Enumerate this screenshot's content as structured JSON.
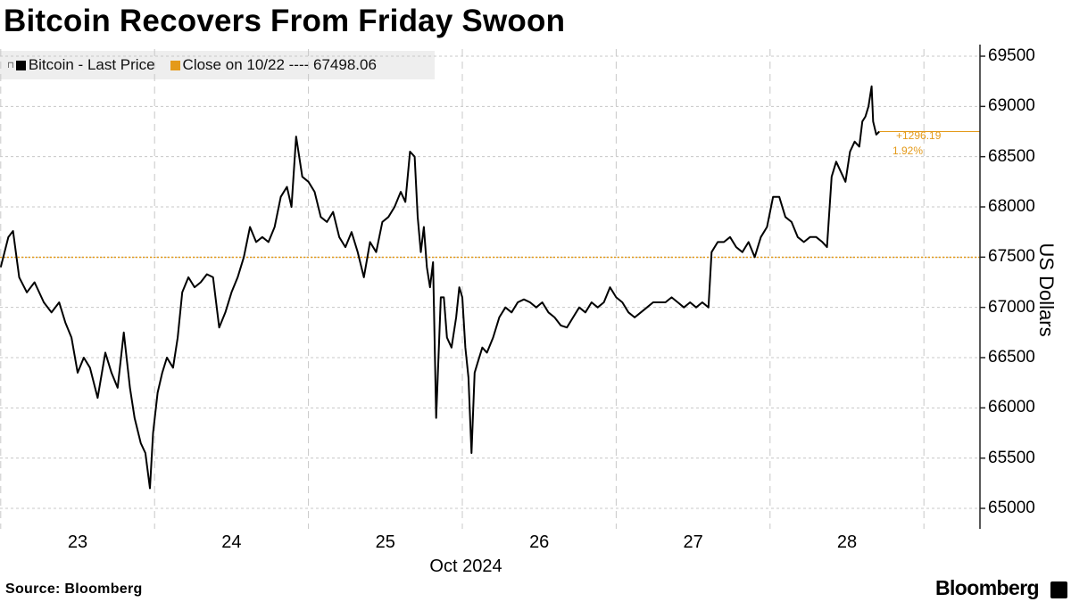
{
  "title": "Bitcoin Recovers From Friday Swoon",
  "legend": {
    "series_label": "Bitcoin - Last Price",
    "close_label": "Close on 10/22 ---- 67498.06"
  },
  "footer": {
    "source": "Source: Bloomberg",
    "brand": "Bloomberg"
  },
  "colors": {
    "series": "#000000",
    "close": "#e49a1a",
    "grid": "#c8c8c8",
    "axis": "#222222"
  },
  "chart_data": {
    "type": "line",
    "ylabel": "US Dollars",
    "xlabel": "Oct 2024",
    "ylim": [
      64850,
      69700
    ],
    "yticks": [
      65000,
      65500,
      66000,
      66500,
      67000,
      67500,
      68000,
      68500,
      69000,
      69500
    ],
    "ytick_labels": [
      "65000",
      "65500",
      "66000",
      "66500",
      "67000",
      "67500",
      "68000",
      "68500",
      "69000",
      "69500"
    ],
    "xlim": [
      22.5,
      28.8
    ],
    "xticks": [
      23,
      24,
      25,
      26,
      27,
      28
    ],
    "xtick_labels": [
      "23",
      "24",
      "25",
      "26",
      "27",
      "28"
    ],
    "grid": true,
    "legend_position": "top-left",
    "close_reference": {
      "label": "Close on 10/22",
      "value": 67498.06
    },
    "annotation": {
      "change": "+1296.19",
      "percent": "1.92%"
    },
    "series": [
      {
        "name": "Bitcoin - Last Price",
        "points": [
          [
            22.5,
            67400
          ],
          [
            22.55,
            67700
          ],
          [
            22.58,
            67760
          ],
          [
            22.62,
            67300
          ],
          [
            22.67,
            67150
          ],
          [
            22.72,
            67250
          ],
          [
            22.78,
            67050
          ],
          [
            22.83,
            66950
          ],
          [
            22.88,
            67050
          ],
          [
            22.92,
            66850
          ],
          [
            22.96,
            66700
          ],
          [
            23.0,
            66350
          ],
          [
            23.04,
            66500
          ],
          [
            23.08,
            66400
          ],
          [
            23.13,
            66100
          ],
          [
            23.18,
            66550
          ],
          [
            23.22,
            66350
          ],
          [
            23.26,
            66200
          ],
          [
            23.3,
            66750
          ],
          [
            23.34,
            66200
          ],
          [
            23.37,
            65900
          ],
          [
            23.41,
            65650
          ],
          [
            23.44,
            65550
          ],
          [
            23.47,
            65200
          ],
          [
            23.49,
            65750
          ],
          [
            23.52,
            66150
          ],
          [
            23.55,
            66350
          ],
          [
            23.58,
            66500
          ],
          [
            23.62,
            66400
          ],
          [
            23.65,
            66700
          ],
          [
            23.68,
            67150
          ],
          [
            23.72,
            67300
          ],
          [
            23.76,
            67200
          ],
          [
            23.8,
            67250
          ],
          [
            23.84,
            67330
          ],
          [
            23.88,
            67300
          ],
          [
            23.92,
            66800
          ],
          [
            23.96,
            66950
          ],
          [
            24.0,
            67150
          ],
          [
            24.04,
            67300
          ],
          [
            24.08,
            67500
          ],
          [
            24.12,
            67800
          ],
          [
            24.16,
            67650
          ],
          [
            24.2,
            67700
          ],
          [
            24.24,
            67650
          ],
          [
            24.28,
            67800
          ],
          [
            24.32,
            68100
          ],
          [
            24.36,
            68200
          ],
          [
            24.39,
            68000
          ],
          [
            24.42,
            68700
          ],
          [
            24.46,
            68300
          ],
          [
            24.5,
            68250
          ],
          [
            24.54,
            68150
          ],
          [
            24.58,
            67900
          ],
          [
            24.62,
            67850
          ],
          [
            24.66,
            67950
          ],
          [
            24.7,
            67700
          ],
          [
            24.74,
            67600
          ],
          [
            24.78,
            67750
          ],
          [
            24.82,
            67550
          ],
          [
            24.86,
            67300
          ],
          [
            24.9,
            67650
          ],
          [
            24.94,
            67550
          ],
          [
            24.98,
            67850
          ],
          [
            25.02,
            67900
          ],
          [
            25.06,
            68000
          ],
          [
            25.1,
            68150
          ],
          [
            25.13,
            68050
          ],
          [
            25.16,
            68550
          ],
          [
            25.19,
            68500
          ],
          [
            25.21,
            67900
          ],
          [
            25.23,
            67550
          ],
          [
            25.25,
            67800
          ],
          [
            25.27,
            67400
          ],
          [
            25.29,
            67200
          ],
          [
            25.31,
            67450
          ],
          [
            25.33,
            65900
          ],
          [
            25.36,
            67100
          ],
          [
            25.38,
            67100
          ],
          [
            25.4,
            66700
          ],
          [
            25.43,
            66600
          ],
          [
            25.46,
            66900
          ],
          [
            25.48,
            67200
          ],
          [
            25.5,
            67100
          ],
          [
            25.52,
            66600
          ],
          [
            25.54,
            66300
          ],
          [
            25.56,
            65550
          ],
          [
            25.58,
            66350
          ],
          [
            25.6,
            66450
          ],
          [
            25.63,
            66600
          ],
          [
            25.66,
            66550
          ],
          [
            25.7,
            66700
          ],
          [
            25.74,
            66900
          ],
          [
            25.78,
            67000
          ],
          [
            25.82,
            66950
          ],
          [
            25.86,
            67050
          ],
          [
            25.9,
            67080
          ],
          [
            25.94,
            67050
          ],
          [
            25.98,
            67000
          ],
          [
            26.02,
            67050
          ],
          [
            26.06,
            66950
          ],
          [
            26.1,
            66900
          ],
          [
            26.14,
            66820
          ],
          [
            26.18,
            66800
          ],
          [
            26.22,
            66900
          ],
          [
            26.26,
            67000
          ],
          [
            26.3,
            66950
          ],
          [
            26.34,
            67050
          ],
          [
            26.38,
            67000
          ],
          [
            26.42,
            67050
          ],
          [
            26.46,
            67200
          ],
          [
            26.5,
            67100
          ],
          [
            26.54,
            67050
          ],
          [
            26.58,
            66950
          ],
          [
            26.62,
            66900
          ],
          [
            26.66,
            66950
          ],
          [
            26.7,
            67000
          ],
          [
            26.74,
            67050
          ],
          [
            26.78,
            67050
          ],
          [
            26.82,
            67050
          ],
          [
            26.86,
            67100
          ],
          [
            26.9,
            67050
          ],
          [
            26.94,
            67000
          ],
          [
            26.98,
            67050
          ],
          [
            27.02,
            67000
          ],
          [
            27.06,
            67050
          ],
          [
            27.1,
            67000
          ],
          [
            27.12,
            67550
          ],
          [
            27.16,
            67650
          ],
          [
            27.2,
            67650
          ],
          [
            27.24,
            67700
          ],
          [
            27.28,
            67600
          ],
          [
            27.32,
            67550
          ],
          [
            27.36,
            67650
          ],
          [
            27.4,
            67500
          ],
          [
            27.44,
            67700
          ],
          [
            27.48,
            67800
          ],
          [
            27.52,
            68100
          ],
          [
            27.56,
            68100
          ],
          [
            27.6,
            67900
          ],
          [
            27.64,
            67850
          ],
          [
            27.68,
            67700
          ],
          [
            27.72,
            67650
          ],
          [
            27.76,
            67700
          ],
          [
            27.8,
            67700
          ],
          [
            27.84,
            67650
          ],
          [
            27.87,
            67600
          ],
          [
            27.9,
            68300
          ],
          [
            27.93,
            68450
          ],
          [
            27.96,
            68350
          ],
          [
            27.99,
            68250
          ],
          [
            28.02,
            68550
          ],
          [
            28.05,
            68650
          ],
          [
            28.08,
            68600
          ],
          [
            28.1,
            68850
          ],
          [
            28.12,
            68900
          ],
          [
            28.14,
            69000
          ],
          [
            28.16,
            69200
          ],
          [
            28.17,
            68850
          ],
          [
            28.19,
            68720
          ],
          [
            28.21,
            68750
          ]
        ]
      }
    ]
  }
}
